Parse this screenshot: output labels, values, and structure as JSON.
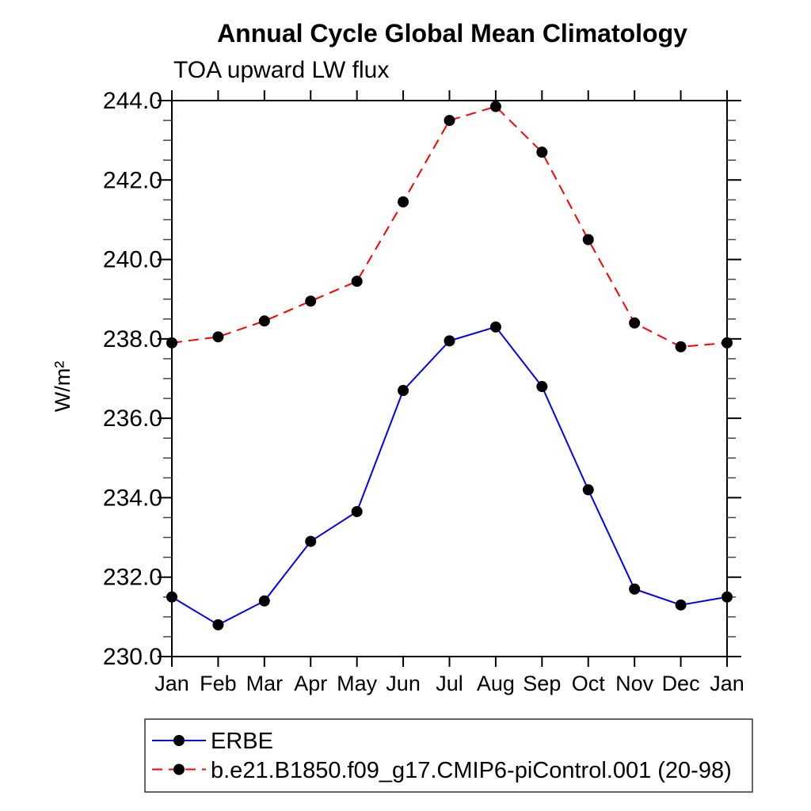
{
  "header": {
    "title": "Annual Cycle Global Mean Climatology",
    "subtitle": "TOA upward LW flux"
  },
  "axes": {
    "ylabel": "W/m²",
    "x_categories": [
      "Jan",
      "Feb",
      "Mar",
      "Apr",
      "May",
      "Jun",
      "Jul",
      "Aug",
      "Sep",
      "Oct",
      "Nov",
      "Dec",
      "Jan"
    ],
    "ytick_labels": [
      "230.0",
      "232.0",
      "234.0",
      "236.0",
      "238.0",
      "240.0",
      "242.0",
      "244.0"
    ]
  },
  "chart_data": {
    "type": "line",
    "title": "Annual Cycle Global Mean Climatology",
    "subtitle": "TOA upward LW flux",
    "xlabel": "",
    "ylabel": "W/m²",
    "categories": [
      "Jan",
      "Feb",
      "Mar",
      "Apr",
      "May",
      "Jun",
      "Jul",
      "Aug",
      "Sep",
      "Oct",
      "Nov",
      "Dec",
      "Jan"
    ],
    "ylim": [
      230.0,
      244.0
    ],
    "ytick_step": 2.0,
    "ytick_minor_step": 0.5,
    "ytick_labels": [
      "230.0",
      "232.0",
      "234.0",
      "236.0",
      "238.0",
      "240.0",
      "242.0",
      "244.0"
    ],
    "grid": false,
    "legend_position": "bottom-left",
    "series": [
      {
        "name": "ERBE",
        "line_color": "#0000ff",
        "line_style": "solid",
        "marker": "filled-circle",
        "marker_color": "#000000",
        "values": [
          231.5,
          230.8,
          231.4,
          232.9,
          233.65,
          236.7,
          237.95,
          238.3,
          236.8,
          234.2,
          231.7,
          231.3,
          231.5
        ]
      },
      {
        "name": "b.e21.B1850.f09_g17.CMIP6-piControl.001 (20-98)",
        "line_color": "#ff0000",
        "line_style": "dashed",
        "marker": "filled-circle",
        "marker_color": "#000000",
        "values": [
          237.9,
          238.05,
          238.45,
          238.95,
          239.45,
          241.45,
          243.5,
          243.85,
          242.7,
          240.5,
          238.4,
          237.8,
          237.9
        ]
      }
    ]
  },
  "legend": {
    "items": [
      {
        "label": "ERBE"
      },
      {
        "label": "b.e21.B1850.f09_g17.CMIP6-piControl.001 (20-98)"
      }
    ]
  },
  "colors": {
    "erbe_line": "#0000ff",
    "model_line": "#ff0000",
    "marker": "#000000",
    "axis": "#000000"
  }
}
